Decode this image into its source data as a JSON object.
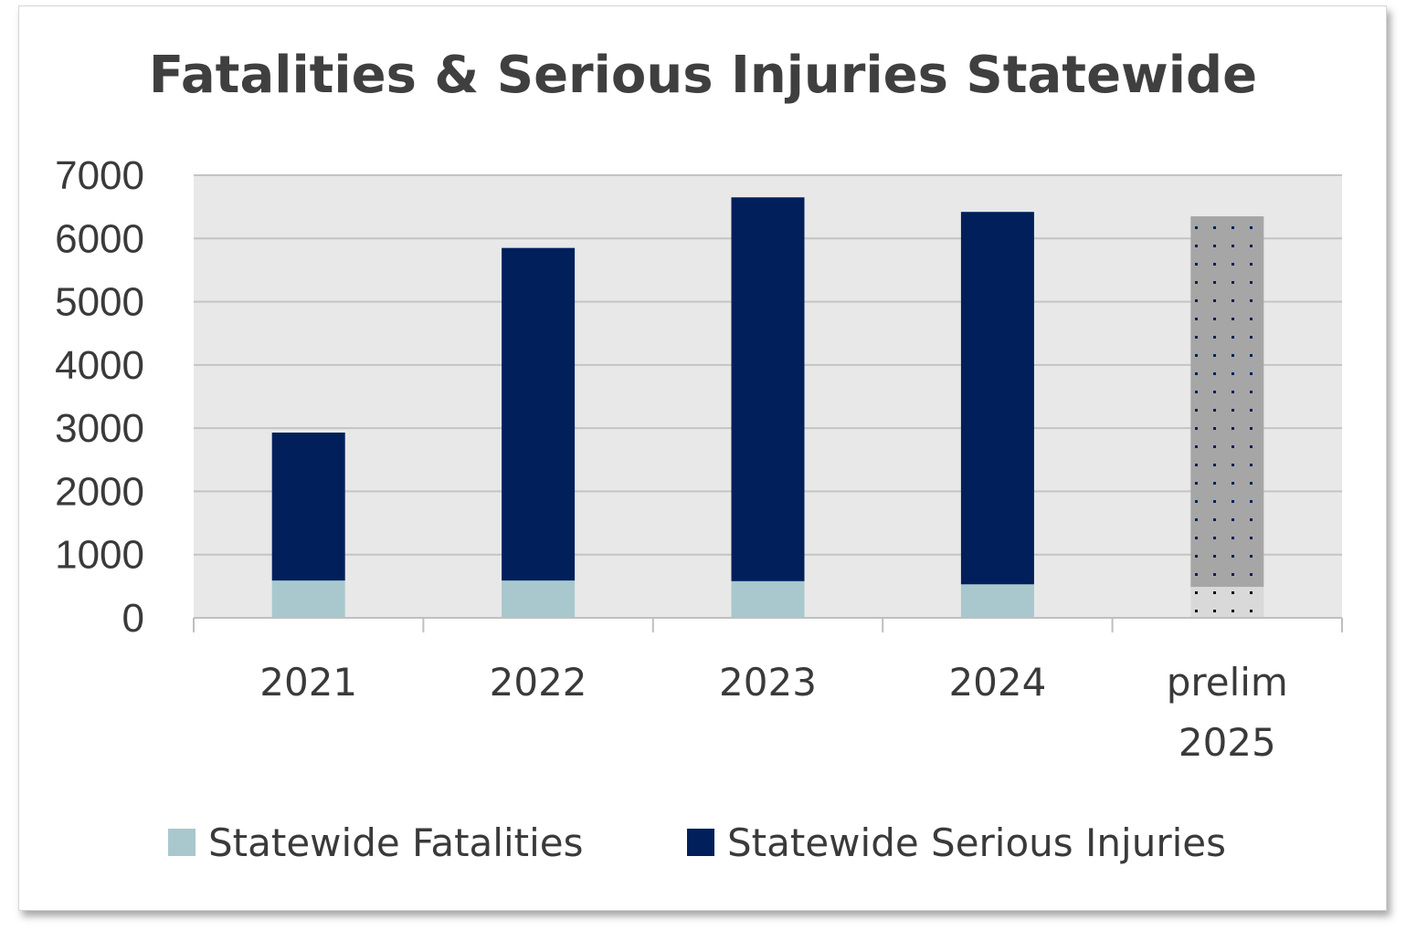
{
  "colors": {
    "fatalities": "#a8c8cd",
    "serious_injuries": "#001f5b",
    "prelim_injuries": "#a6a6a6",
    "prelim_fatalities": "#d9d9d9",
    "plot_bg": "#e8e8e8",
    "grid": "#c4c4c4"
  },
  "chart_data": {
    "type": "bar",
    "stacked": true,
    "title": "Fatalities & Serious Injuries Statewide",
    "xlabel": "",
    "ylabel": "",
    "ylim": [
      0,
      7000
    ],
    "yticks": [
      "0",
      "1000",
      "2000",
      "3000",
      "4000",
      "5000",
      "6000",
      "7000"
    ],
    "grid": true,
    "legend_position": "bottom",
    "categories": [
      [
        "2021"
      ],
      [
        "2022"
      ],
      [
        "2023"
      ],
      [
        "2024"
      ],
      [
        "prelim",
        "2025"
      ]
    ],
    "series": [
      {
        "name": "Statewide Fatalities",
        "values": [
          590,
          590,
          580,
          530,
          490
        ]
      },
      {
        "name": "Statewide Serious Injuries",
        "values": [
          2340,
          5260,
          6070,
          5890,
          5860
        ]
      }
    ]
  }
}
